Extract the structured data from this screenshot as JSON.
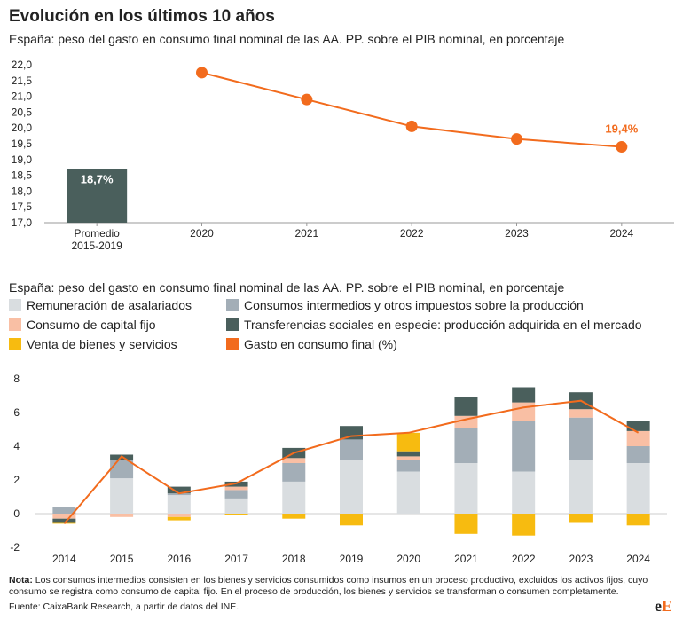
{
  "header": {
    "title": "Evolución en los últimos 10 años",
    "subtitle_top": "España: peso del gasto en consumo final nominal de las AA. PP. sobre el PIB nominal, en porcentaje",
    "subtitle_bottom": "España: peso del gasto en consumo final nominal de las AA. PP. sobre el PIB nominal, en porcentaje"
  },
  "colors": {
    "line": "#f26b1d",
    "bar_dark": "#4a5f5c",
    "remuneracion": "#d9dde0",
    "consumos_intermedios": "#a3aeb7",
    "consumo_capital": "#f9bfa4",
    "transferencias": "#4a5f5c",
    "venta": "#f7bb10",
    "axis": "#999999"
  },
  "chart_data": [
    {
      "type": "bar+line",
      "categories": [
        "Promedio\n2015-2019",
        "2020",
        "2021",
        "2022",
        "2023",
        "2024"
      ],
      "ylim": [
        17.0,
        22.0
      ],
      "yticks": [
        "17,0",
        "17,5",
        "18,0",
        "18,5",
        "19,0",
        "19,5",
        "20,0",
        "20,5",
        "21,0",
        "21,5",
        "22,0"
      ],
      "bar": {
        "category": "Promedio\n2015-2019",
        "value": 18.7,
        "label": "18,7%"
      },
      "line": {
        "x": [
          "2020",
          "2021",
          "2022",
          "2023",
          "2024"
        ],
        "values": [
          21.75,
          20.9,
          20.05,
          19.65,
          19.4
        ]
      },
      "annotation": {
        "x": "2024",
        "label": "19,4%"
      }
    },
    {
      "type": "stacked-bar+line",
      "categories": [
        "2014",
        "2015",
        "2016",
        "2017",
        "2018",
        "2019",
        "2020",
        "2021",
        "2022",
        "2023",
        "2024"
      ],
      "ylim": [
        -2.5,
        8.5
      ],
      "yticks": [
        "-2",
        "0",
        "2",
        "4",
        "6",
        "8"
      ],
      "legend": [
        {
          "key": "remuneracion",
          "label": "Remuneración de asalariados"
        },
        {
          "key": "consumos_intermedios",
          "label": "Consumos intermedios y otros impuestos sobre la producción"
        },
        {
          "key": "consumo_capital",
          "label": "Consumo de capital fijo"
        },
        {
          "key": "transferencias",
          "label": "Transferencias sociales en especie: producción adquirida en el mercado"
        },
        {
          "key": "venta",
          "label": "Venta de bienes y servicios"
        },
        {
          "key": "gasto_total",
          "label": "Gasto en consumo final (%)"
        }
      ],
      "series": [
        {
          "name": "Remuneración de asalariados",
          "key": "remuneracion",
          "values": [
            0.0,
            2.1,
            1.1,
            0.9,
            1.9,
            3.2,
            2.5,
            3.0,
            2.5,
            3.2,
            3.0
          ]
        },
        {
          "name": "Consumos intermedios y otros impuestos sobre la producción",
          "key": "consumos_intermedios",
          "values": [
            0.4,
            1.1,
            0.1,
            0.5,
            1.1,
            1.2,
            0.7,
            2.1,
            3.0,
            2.5,
            1.0
          ]
        },
        {
          "name": "Consumo de capital fijo",
          "key": "consumo_capital",
          "values": [
            -0.3,
            -0.2,
            -0.2,
            0.2,
            0.3,
            0.0,
            0.2,
            0.7,
            1.1,
            0.5,
            0.9
          ]
        },
        {
          "name": "Transferencias sociales en especie: producción adquirida en el mercado",
          "key": "transferencias",
          "values": [
            -0.2,
            0.3,
            0.4,
            0.3,
            0.6,
            0.8,
            0.3,
            1.1,
            0.9,
            1.0,
            0.6
          ]
        },
        {
          "name": "Venta de bienes y servicios",
          "key": "venta",
          "values": [
            -0.1,
            0.0,
            -0.2,
            -0.1,
            -0.3,
            -0.7,
            1.1,
            -1.2,
            -1.3,
            -0.5,
            -0.7
          ]
        }
      ],
      "line": {
        "name": "Gasto en consumo final (%)",
        "values": [
          -0.6,
          3.4,
          1.2,
          1.8,
          3.6,
          4.6,
          4.8,
          5.6,
          6.3,
          6.7,
          4.8
        ]
      }
    }
  ],
  "footer": {
    "note_label": "Nota:",
    "note_text": "Los consumos intermedios consisten en los bienes y servicios consumidos como insumos en un proceso productivo, excluidos los activos fijos, cuyo consumo se registra como consumo de capital fijo. En el proceso de producción, los bienes y servicios se transforman o consumen completamente.",
    "source": "Fuente: CaixaBank Research, a partir de datos del INE."
  },
  "logo": {
    "e1": "e",
    "e2": "E"
  }
}
